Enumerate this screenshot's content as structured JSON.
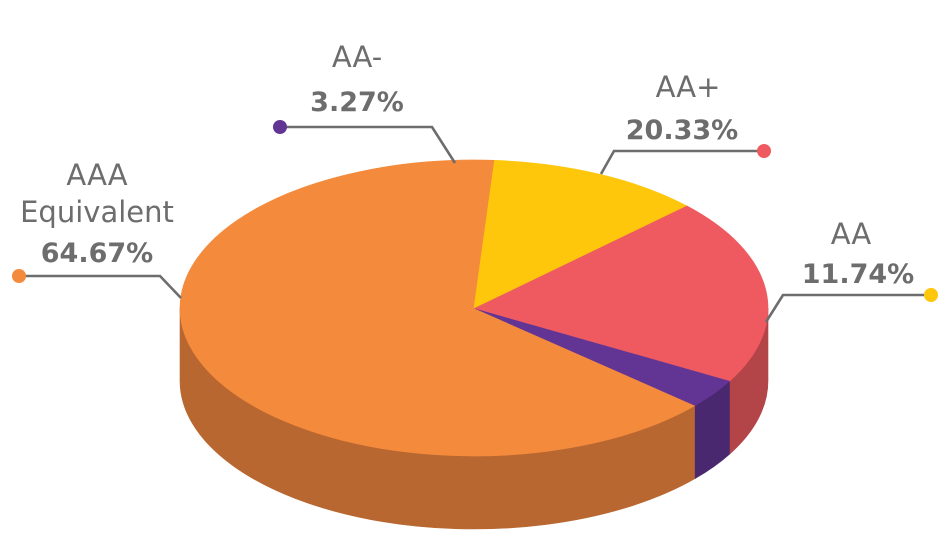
{
  "chart_data": {
    "type": "pie",
    "title": "",
    "series": [
      {
        "name_lines": [
          "AAA",
          "Equivalent"
        ],
        "value": 64.67,
        "label": "64.67%",
        "color": "#F48A3C",
        "side_color": "#B86730"
      },
      {
        "name_lines": [
          "AA-"
        ],
        "value": 3.27,
        "label": "3.27%",
        "color": "#623594",
        "side_color": "#4A2870"
      },
      {
        "name_lines": [
          "AA+"
        ],
        "value": 20.33,
        "label": "20.33%",
        "color": "#EF5A60",
        "side_color": "#B34448"
      },
      {
        "name_lines": [
          "AA"
        ],
        "value": 11.74,
        "label": "11.74%",
        "color": "#FEC70C",
        "side_color": "#DDB12B"
      }
    ]
  }
}
